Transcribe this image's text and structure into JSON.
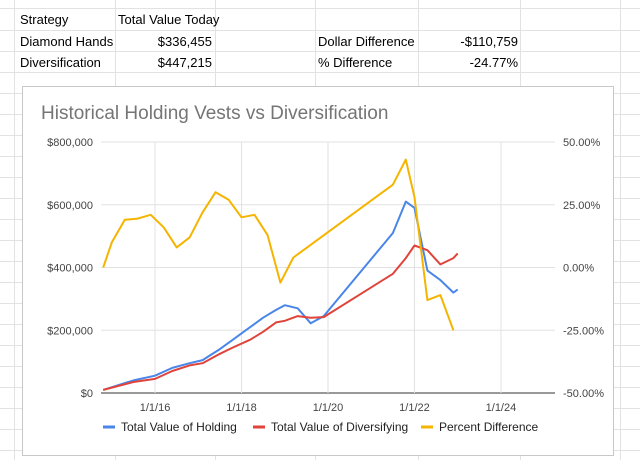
{
  "sheet": {
    "header": {
      "col_a": "Strategy",
      "col_b": "Total Value Today"
    },
    "rows": [
      {
        "label": "Diamond Hands",
        "value": "$336,455",
        "metric_label": "Dollar Difference",
        "metric_value": "-$110,759"
      },
      {
        "label": "Diversification",
        "value": "$447,215",
        "metric_label": "% Difference",
        "metric_value": "-24.77%"
      }
    ]
  },
  "colors": {
    "holding": "#4a86e8",
    "diversifying": "#e0433a",
    "percent": "#f4b400",
    "gridline": "#e2e2e2",
    "cell_border": "#e2e2e2"
  },
  "chart_data": {
    "type": "line",
    "title": "Historical Holding Vests vs Diversification",
    "y_left": {
      "min": 0,
      "max": 800000,
      "ticks": [
        0,
        200000,
        400000,
        600000,
        800000
      ],
      "tick_labels": [
        "$0",
        "$200,000",
        "$400,000",
        "$600,000",
        "$800,000"
      ]
    },
    "y_right": {
      "min": -50,
      "max": 50,
      "ticks": [
        -50,
        -25,
        0,
        25,
        50
      ],
      "tick_labels": [
        "-50.00%",
        "-25.00%",
        "0.00%",
        "25.00%",
        "50.00%"
      ]
    },
    "x_axis": {
      "min": 2014.75,
      "max": 2025.25,
      "ticks": [
        2016,
        2018,
        2020,
        2022,
        2024
      ],
      "tick_labels": [
        "1/1/16",
        "1/1/18",
        "1/1/20",
        "1/1/22",
        "1/1/24"
      ]
    },
    "series": [
      {
        "name": "Total Value of Holding",
        "axis": "left",
        "color_key": "holding",
        "points": [
          [
            2014.8,
            10000
          ],
          [
            2015.5,
            40000
          ],
          [
            2016.0,
            55000
          ],
          [
            2016.4,
            80000
          ],
          [
            2016.8,
            95000
          ],
          [
            2017.1,
            105000
          ],
          [
            2017.5,
            140000
          ],
          [
            2017.8,
            170000
          ],
          [
            2018.2,
            210000
          ],
          [
            2018.5,
            240000
          ],
          [
            2018.8,
            265000
          ],
          [
            2019.0,
            280000
          ],
          [
            2019.3,
            270000
          ],
          [
            2019.6,
            222000
          ],
          [
            2019.9,
            245000
          ],
          [
            2021.5,
            510000
          ],
          [
            2021.8,
            610000
          ],
          [
            2022.0,
            590000
          ],
          [
            2022.3,
            390000
          ],
          [
            2022.6,
            360000
          ],
          [
            2022.9,
            320000
          ],
          [
            2023.0,
            330000
          ]
        ]
      },
      {
        "name": "Total Value of Diversifying",
        "axis": "left",
        "color_key": "diversifying",
        "points": [
          [
            2014.8,
            10000
          ],
          [
            2015.5,
            35000
          ],
          [
            2016.0,
            45000
          ],
          [
            2016.4,
            70000
          ],
          [
            2016.8,
            88000
          ],
          [
            2017.1,
            95000
          ],
          [
            2017.5,
            125000
          ],
          [
            2017.8,
            145000
          ],
          [
            2018.2,
            170000
          ],
          [
            2018.5,
            195000
          ],
          [
            2018.8,
            225000
          ],
          [
            2019.0,
            230000
          ],
          [
            2019.3,
            245000
          ],
          [
            2019.6,
            240000
          ],
          [
            2019.9,
            242000
          ],
          [
            2021.5,
            380000
          ],
          [
            2021.8,
            430000
          ],
          [
            2022.0,
            470000
          ],
          [
            2022.3,
            455000
          ],
          [
            2022.6,
            410000
          ],
          [
            2022.9,
            430000
          ],
          [
            2023.0,
            445000
          ]
        ]
      },
      {
        "name": "Percent Difference",
        "axis": "right",
        "color_key": "percent",
        "points": [
          [
            2014.8,
            0
          ],
          [
            2015.0,
            10
          ],
          [
            2015.3,
            19
          ],
          [
            2015.6,
            19.5
          ],
          [
            2015.9,
            21
          ],
          [
            2016.2,
            16
          ],
          [
            2016.5,
            8
          ],
          [
            2016.8,
            12
          ],
          [
            2017.1,
            22
          ],
          [
            2017.4,
            30
          ],
          [
            2017.7,
            27
          ],
          [
            2018.0,
            20
          ],
          [
            2018.3,
            21
          ],
          [
            2018.6,
            13
          ],
          [
            2018.9,
            -6
          ],
          [
            2019.2,
            4
          ],
          [
            2021.5,
            33
          ],
          [
            2021.8,
            43
          ],
          [
            2022.0,
            28
          ],
          [
            2022.3,
            -13
          ],
          [
            2022.6,
            -11
          ],
          [
            2022.9,
            -25
          ]
        ]
      }
    ],
    "legend": [
      "Total Value of Holding",
      "Total Value of Diversifying",
      "Percent Difference"
    ],
    "legend_position": "bottom",
    "grid": true
  }
}
